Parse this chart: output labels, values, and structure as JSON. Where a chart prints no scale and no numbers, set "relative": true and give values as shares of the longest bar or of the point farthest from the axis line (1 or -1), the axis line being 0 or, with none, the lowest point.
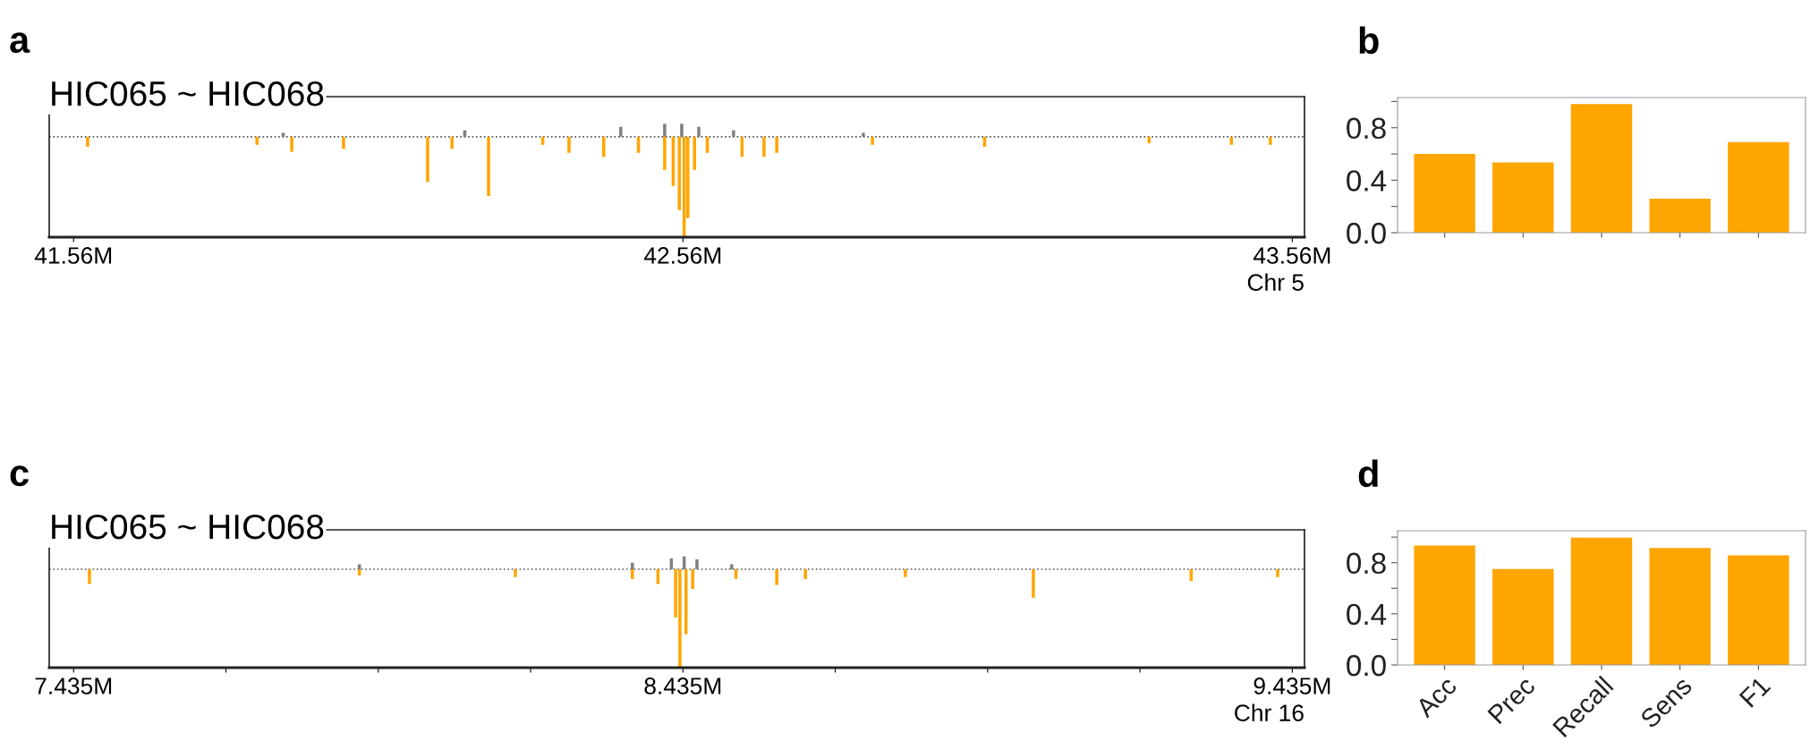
{
  "chart_data": [
    {
      "type": "bar",
      "title": "HIC065 ~ HIC068",
      "xlabel": "Chr 5",
      "annotations": [
        "a"
      ],
      "relative": true,
      "tick_labels": "x",
      "xlim": [
        41.52,
        43.58
      ],
      "xticks": [
        {
          "value": 41.56,
          "label": "41.56M"
        },
        {
          "value": 42.56,
          "label": "42.56M"
        },
        {
          "value": 43.56,
          "label": "43.56M"
        }
      ],
      "ref_lines": [
        {
          "axis": "y",
          "value": 0,
          "color": "#555555",
          "line_style": "dotted"
        }
      ],
      "series": [
        {
          "color": "#808080",
          "x": [
            41.904,
            42.202,
            42.458,
            42.53,
            42.558,
            42.586,
            42.643,
            42.856
          ],
          "values": [
            0.04,
            0.065,
            0.1,
            0.13,
            0.13,
            0.1,
            0.065,
            0.04
          ]
        },
        {
          "color": "#ffa500",
          "x": [
            41.583,
            41.861,
            41.918,
            42.003,
            42.141,
            42.181,
            42.241,
            42.33,
            42.373,
            42.43,
            42.487,
            42.53,
            42.544,
            42.554,
            42.562,
            42.568,
            42.579,
            42.6,
            42.657,
            42.693,
            42.714,
            42.871,
            43.055,
            43.325,
            43.46,
            43.524
          ],
          "values": [
            -0.1,
            -0.08,
            -0.15,
            -0.12,
            -0.45,
            -0.12,
            -0.59,
            -0.08,
            -0.16,
            -0.2,
            -0.16,
            -0.33,
            -0.49,
            -0.73,
            -1,
            -0.81,
            -0.33,
            -0.16,
            -0.2,
            -0.2,
            -0.16,
            -0.08,
            -0.1,
            -0.065,
            -0.08,
            -0.08
          ]
        }
      ]
    },
    {
      "type": "bar",
      "annotations": [
        "b"
      ],
      "tick_labels": "y",
      "categories": [
        null,
        null,
        null,
        null,
        null
      ],
      "color": "#ffa500",
      "values": [
        0.6,
        0.535,
        0.98,
        0.26,
        0.69
      ],
      "ylim": [
        0,
        1.03
      ],
      "yticks": [
        {
          "value": 0,
          "label": "0.0"
        },
        {
          "value": 0.2,
          "label": null
        },
        {
          "value": 0.4,
          "label": "0.4"
        },
        {
          "value": 0.6,
          "label": null
        },
        {
          "value": 0.8,
          "label": "0.8"
        },
        {
          "value": 1.0,
          "label": null
        }
      ]
    },
    {
      "type": "bar",
      "title": "HIC065 ~ HIC068",
      "xlabel": "Chr 16",
      "annotations": [
        "c"
      ],
      "relative": true,
      "tick_labels": "x",
      "xlim": [
        7.395,
        9.455
      ],
      "xticks": [
        {
          "value": 7.435,
          "label": "7.435M"
        },
        {
          "value": 7.685,
          "label": null
        },
        {
          "value": 7.935,
          "label": null
        },
        {
          "value": 8.185,
          "label": null
        },
        {
          "value": 8.435,
          "label": "8.435M"
        },
        {
          "value": 8.685,
          "label": null
        },
        {
          "value": 8.935,
          "label": null
        },
        {
          "value": 9.185,
          "label": null
        },
        {
          "value": 9.435,
          "label": "9.435M"
        }
      ],
      "ref_lines": [
        {
          "axis": "y",
          "value": 0,
          "color": "#555555",
          "line_style": "dotted"
        }
      ],
      "series": [
        {
          "color": "#808080",
          "x": [
            7.904,
            8.352,
            8.416,
            8.437,
            8.458,
            8.515
          ],
          "values": [
            0.05,
            0.065,
            0.11,
            0.13,
            0.1,
            0.05
          ]
        },
        {
          "color": "#ffa500",
          "x": [
            7.461,
            7.904,
            8.16,
            8.352,
            8.394,
            8.423,
            8.43,
            8.44,
            8.451,
            8.522,
            8.589,
            8.636,
            8.8,
            9.01,
            9.269,
            9.411
          ],
          "values": [
            -0.15,
            -0.065,
            -0.08,
            -0.1,
            -0.15,
            -0.49,
            -1,
            -0.66,
            -0.2,
            -0.1,
            -0.16,
            -0.1,
            -0.08,
            -0.29,
            -0.12,
            -0.08
          ]
        }
      ]
    },
    {
      "type": "bar",
      "annotations": [
        "d"
      ],
      "categories": [
        "Acc",
        "Prec",
        "Recall",
        "Sens",
        "F1"
      ],
      "color": "#ffa500",
      "values": [
        0.935,
        0.75,
        0.995,
        0.915,
        0.857
      ],
      "ylim": [
        0,
        1.05
      ],
      "yticks": [
        {
          "value": 0,
          "label": "0.0"
        },
        {
          "value": 0.2,
          "label": null
        },
        {
          "value": 0.4,
          "label": "0.4"
        },
        {
          "value": 0.6,
          "label": null
        },
        {
          "value": 0.8,
          "label": "0.8"
        },
        {
          "value": 1.0,
          "label": null
        }
      ]
    }
  ]
}
